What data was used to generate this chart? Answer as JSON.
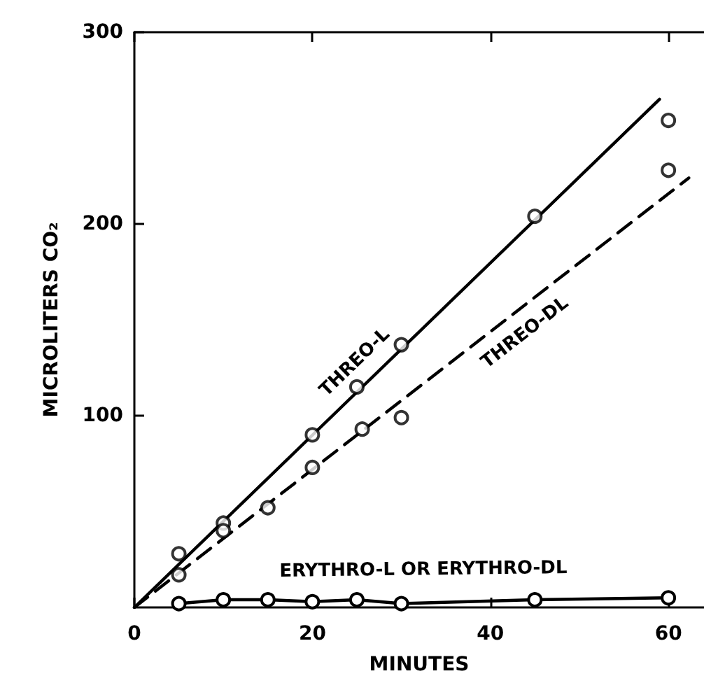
{
  "chart_data": {
    "type": "scatter",
    "xlabel": "MINUTES",
    "ylabel": "MICROLITERS CO₂",
    "xlim": [
      0,
      64
    ],
    "xticks": [
      0,
      20,
      40,
      60
    ],
    "ylim": [
      0,
      300
    ],
    "yticks": [
      100,
      200,
      300
    ],
    "grid": false,
    "legend": false,
    "series": [
      {
        "color": "#000000",
        "marker": "circle",
        "x": [
          5,
          10,
          20,
          25,
          30,
          45,
          60
        ],
        "values": [
          28,
          44,
          90,
          115,
          137,
          204,
          254
        ]
      },
      {
        "name": "THREO-L",
        "type": "line",
        "color": "#000000",
        "marker": "none",
        "line_style": "solid",
        "x": [
          0,
          59
        ],
        "values": [
          0,
          265
        ]
      },
      {
        "color": "#000000",
        "marker": "circle",
        "x": [
          5,
          10,
          15,
          20,
          25.6,
          30,
          60
        ],
        "values": [
          17,
          40,
          52,
          73,
          93,
          99,
          228
        ]
      },
      {
        "name": "THREO-DL",
        "type": "line",
        "color": "#000000",
        "marker": "none",
        "line_style": "dashed",
        "x": [
          0,
          62.3
        ],
        "values": [
          0,
          224
        ]
      },
      {
        "name": "ERYTHRO-L OR ERYTHRO-DL",
        "type": "line",
        "color": "#000000",
        "marker": "circle",
        "line_style": "solid",
        "x": [
          5,
          10,
          15,
          20,
          25,
          30,
          45,
          60
        ],
        "values": [
          2,
          4,
          4,
          3,
          4,
          2,
          4,
          5
        ]
      }
    ]
  }
}
